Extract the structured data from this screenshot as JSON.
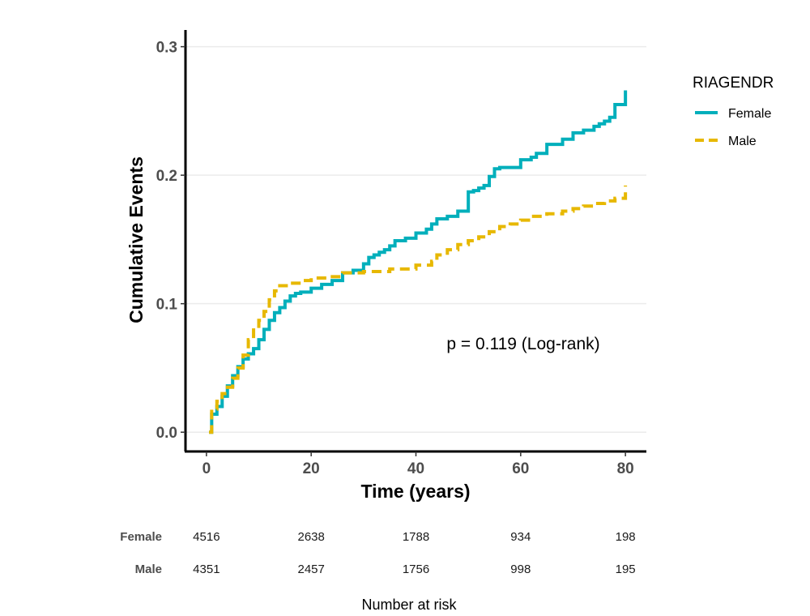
{
  "chart_data": {
    "type": "line",
    "title": "",
    "xlabel": "Time (years)",
    "ylabel": "Cumulative Events",
    "xlim": [
      -4,
      84
    ],
    "ylim": [
      -0.015,
      0.313
    ],
    "xticks": [
      "0",
      "20",
      "40",
      "60",
      "80"
    ],
    "yticks": [
      "0.0",
      "0.1",
      "0.2",
      "0.3"
    ],
    "grid": "horizontal",
    "legend": {
      "title": "RIAGENDR",
      "placement": "right"
    },
    "annotation": "p = 0.119 (Log-rank)",
    "series": [
      {
        "name": "Female",
        "color": "#00AFBB",
        "dash": "solid",
        "x": [
          0.5,
          1,
          2,
          3,
          4,
          5,
          6,
          7,
          8,
          9,
          10,
          11,
          12,
          13,
          14,
          15,
          16,
          17,
          18,
          20,
          22,
          24,
          26,
          28,
          30,
          31,
          32,
          33,
          34,
          35,
          36,
          38,
          40,
          42,
          43,
          44,
          46,
          48,
          50,
          51,
          52,
          53,
          54,
          55,
          56,
          58,
          60,
          62,
          63,
          65,
          68,
          70,
          72,
          74,
          75,
          76,
          77,
          78,
          80
        ],
        "y": [
          0.0,
          0.014,
          0.02,
          0.028,
          0.036,
          0.044,
          0.051,
          0.057,
          0.061,
          0.065,
          0.072,
          0.08,
          0.087,
          0.093,
          0.097,
          0.102,
          0.106,
          0.108,
          0.109,
          0.112,
          0.115,
          0.118,
          0.124,
          0.126,
          0.131,
          0.136,
          0.138,
          0.14,
          0.142,
          0.145,
          0.149,
          0.151,
          0.155,
          0.158,
          0.162,
          0.166,
          0.168,
          0.172,
          0.187,
          0.188,
          0.19,
          0.192,
          0.199,
          0.205,
          0.206,
          0.206,
          0.212,
          0.214,
          0.217,
          0.224,
          0.228,
          0.233,
          0.235,
          0.238,
          0.24,
          0.242,
          0.245,
          0.255,
          0.266
        ]
      },
      {
        "name": "Male",
        "color": "#E7B800",
        "dash": "dashed",
        "x": [
          0.5,
          1,
          2,
          3,
          4,
          5,
          6,
          7,
          8,
          9,
          10,
          11,
          12,
          13,
          14,
          16,
          18,
          20,
          23,
          26,
          30,
          35,
          40,
          43,
          44,
          46,
          48,
          50,
          52,
          54,
          56,
          58,
          60,
          62,
          65,
          68,
          70,
          72,
          74,
          76,
          78,
          80
        ],
        "y": [
          0.0,
          0.018,
          0.024,
          0.03,
          0.035,
          0.042,
          0.05,
          0.06,
          0.072,
          0.081,
          0.087,
          0.094,
          0.103,
          0.11,
          0.114,
          0.116,
          0.118,
          0.12,
          0.121,
          0.124,
          0.125,
          0.127,
          0.13,
          0.133,
          0.138,
          0.142,
          0.146,
          0.149,
          0.152,
          0.156,
          0.16,
          0.162,
          0.165,
          0.168,
          0.17,
          0.172,
          0.174,
          0.176,
          0.178,
          0.18,
          0.182,
          0.192
        ]
      }
    ],
    "risk_table": {
      "title": "Number at risk",
      "times": [
        0,
        20,
        40,
        60,
        80
      ],
      "groups": [
        {
          "name": "Female",
          "values": [
            "4516",
            "2638",
            "1788",
            "934",
            "198"
          ]
        },
        {
          "name": "Male",
          "values": [
            "4351",
            "2457",
            "1756",
            "998",
            "195"
          ]
        }
      ]
    }
  }
}
